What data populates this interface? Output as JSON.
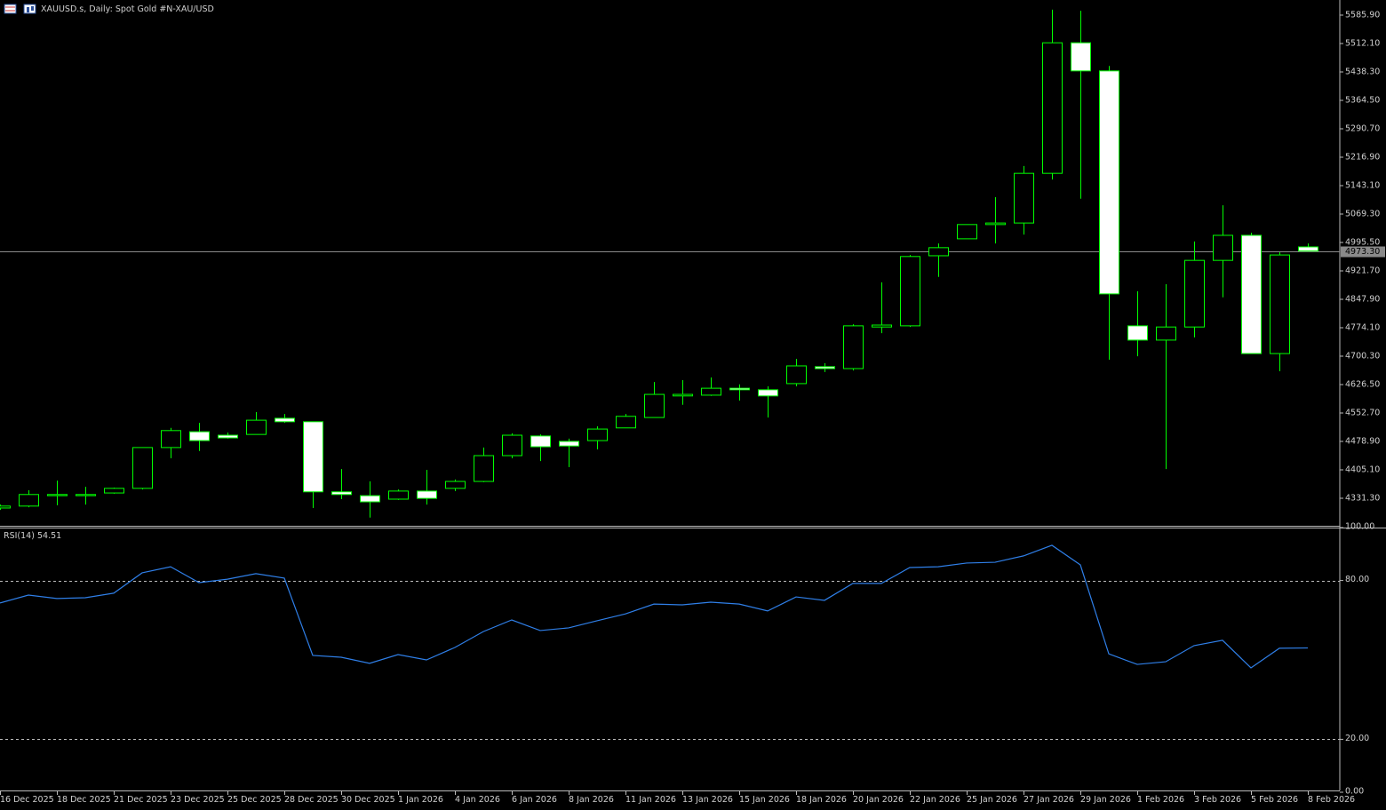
{
  "chart_data": [
    {
      "type": "candlestick",
      "title": "XAUUSD.s, Daily:  Spot Gold #N-XAU/USD",
      "categories": [
        "16 Dec 2025",
        null,
        "18 Dec 2025",
        null,
        "21 Dec 2025",
        null,
        "23 Dec 2025",
        null,
        "25 Dec 2025",
        null,
        "28 Dec 2025",
        null,
        "30 Dec 2025",
        null,
        "1 Jan 2026",
        null,
        "4 Jan 2026",
        null,
        "6 Jan 2026",
        null,
        "8 Jan 2026",
        null,
        "11 Jan 2026",
        null,
        "13 Jan 2026",
        null,
        "15 Jan 2026",
        null,
        "18 Jan 2026",
        null,
        "20 Jan 2026",
        null,
        "22 Jan 2026",
        null,
        "25 Jan 2026",
        null,
        "27 Jan 2026",
        null,
        "29 Jan 2026",
        null,
        "1 Feb 2026",
        null,
        "3 Feb 2026",
        null,
        "5 Feb 2026",
        null,
        "8 Feb 2026"
      ],
      "open": [
        4306,
        4311,
        4338,
        4338,
        4345,
        4357,
        4463,
        4504,
        4495,
        4497,
        4539,
        4530,
        4348,
        4338,
        4329,
        4350,
        4357,
        4375,
        4442,
        4493,
        4479,
        4481,
        4514,
        4541,
        4597,
        4599,
        4617,
        4613,
        4629,
        4673,
        4668,
        4776,
        4779,
        4961,
        5005,
        5042,
        5046,
        5175,
        5514,
        5441,
        4779,
        4742,
        4776,
        4949,
        5014,
        4707,
        4984
      ],
      "high": [
        4315,
        4352,
        4377,
        4361,
        4359,
        4463,
        4514,
        4527,
        4502,
        4555,
        4550,
        4530,
        4407,
        4375,
        4354,
        4405,
        4380,
        4463,
        4500,
        4497,
        4486,
        4518,
        4550,
        4633,
        4638,
        4645,
        4627,
        4622,
        4693,
        4682,
        4783,
        4892,
        4963,
        4993,
        5042,
        5113,
        5194,
        5600,
        5597,
        5454,
        4869,
        4887,
        4998,
        5092,
        5021,
        4970,
        4993
      ],
      "low": [
        4301,
        4308,
        4313,
        4315,
        4343,
        4354,
        4435,
        4454,
        4486,
        4497,
        4527,
        4306,
        4329,
        4281,
        4327,
        4315,
        4350,
        4373,
        4435,
        4428,
        4412,
        4458,
        4514,
        4541,
        4574,
        4597,
        4585,
        4541,
        4622,
        4659,
        4663,
        4760,
        4776,
        4906,
        5005,
        4993,
        5016,
        5159,
        5109,
        4691,
        4700,
        4407,
        4749,
        4853,
        4707,
        4661,
        4972
      ],
      "close": [
        4311,
        4341,
        4341,
        4341,
        4357,
        4463,
        4507,
        4481,
        4488,
        4534,
        4530,
        4348,
        4341,
        4322,
        4350,
        4331,
        4375,
        4442,
        4495,
        4465,
        4467,
        4511,
        4544,
        4601,
        4601,
        4617,
        4613,
        4597,
        4675,
        4668,
        4779,
        4781,
        4959,
        4982,
        5042,
        5046,
        5175,
        5514,
        5441,
        4862,
        4742,
        4776,
        4949,
        5014,
        4707,
        4963,
        4973.3
      ],
      "color": "#00ff00",
      "down_fill": "#ffffff",
      "ylim": [
        4259.8,
        5625.1
      ],
      "yticks": [
        {
          "value": 5585.9,
          "label": "5585.90"
        },
        {
          "value": 5512.1,
          "label": "5512.10"
        },
        {
          "value": 5438.3,
          "label": "5438.30"
        },
        {
          "value": 5364.5,
          "label": "5364.50"
        },
        {
          "value": 5290.7,
          "label": "5290.70"
        },
        {
          "value": 5216.9,
          "label": "5216.90"
        },
        {
          "value": 5143.1,
          "label": "5143.10"
        },
        {
          "value": 5069.3,
          "label": "5069.30"
        },
        {
          "value": 4995.5,
          "label": "4995.50"
        },
        {
          "value": 4921.7,
          "label": "4921.70"
        },
        {
          "value": 4847.9,
          "label": "4847.90"
        },
        {
          "value": 4774.1,
          "label": "4774.10"
        },
        {
          "value": 4700.3,
          "label": "4700.30"
        },
        {
          "value": 4626.5,
          "label": "4626.50"
        },
        {
          "value": 4552.7,
          "label": "4552.70"
        },
        {
          "value": 4478.9,
          "label": "4478.90"
        },
        {
          "value": 4405.1,
          "label": "4405.10"
        },
        {
          "value": 4331.3,
          "label": "4331.30"
        }
      ],
      "current_price": {
        "value": 4973.3,
        "label": "4973.30"
      }
    },
    {
      "type": "line",
      "title": "RSI(14)",
      "values": [
        71.5,
        74.5,
        73.2,
        73.5,
        75.2,
        82.9,
        85.2,
        79.2,
        80.5,
        82.6,
        80.9,
        51.7,
        51.0,
        48.7,
        52.0,
        50.0,
        54.7,
        60.7,
        65.1,
        61.1,
        62.1,
        64.8,
        67.4,
        71.1,
        70.8,
        71.8,
        71.1,
        68.5,
        73.8,
        72.5,
        78.9,
        78.9,
        84.9,
        85.2,
        86.6,
        86.9,
        89.3,
        93.3,
        85.9,
        52.3,
        48.3,
        49.3,
        55.4,
        57.4,
        47.0,
        54.4,
        54.51
      ],
      "color": "#2f7fe8",
      "ylim": [
        0,
        100
      ],
      "yticks": [
        {
          "value": 100,
          "label": "100.00"
        },
        {
          "value": 80,
          "label": "80.00"
        },
        {
          "value": 20,
          "label": "20.00"
        },
        {
          "value": 0,
          "label": "0.00"
        }
      ]
    }
  ]
}
